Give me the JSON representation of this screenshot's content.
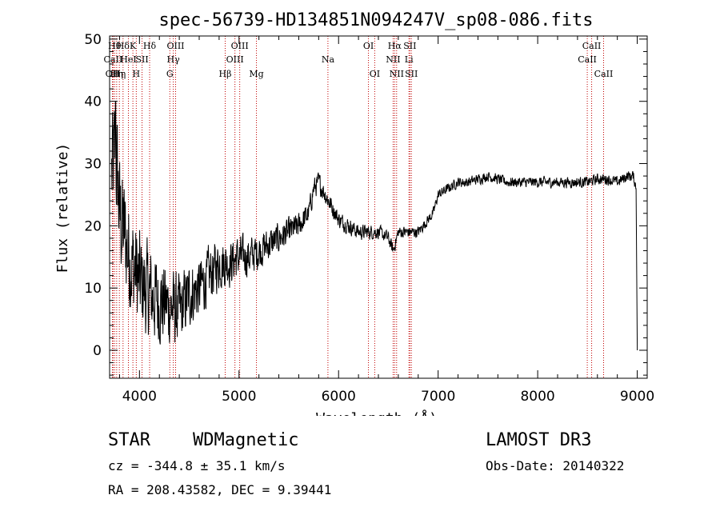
{
  "chart_data": {
    "type": "line",
    "title": "spec-56739-HD134851N094247V_sp08-086.fits",
    "xlabel": "Wavelength (Å)",
    "ylabel": "Flux (relative)",
    "xlim": [
      3700,
      9100
    ],
    "ylim": [
      -4.5,
      50.5
    ],
    "xticks": [
      4000,
      5000,
      6000,
      7000,
      8000,
      9000
    ],
    "xtick_labels": [
      "4000",
      "5000",
      "6000",
      "7000",
      "8000",
      "9000"
    ],
    "yticks": [
      0,
      10,
      20,
      30,
      40,
      50
    ],
    "ytick_labels": [
      "0",
      "10",
      "20",
      "30",
      "40",
      "50"
    ],
    "spectrum_anchors": {
      "x": [
        3720,
        3760,
        3800,
        3900,
        4000,
        4100,
        4200,
        4300,
        4400,
        4500,
        4600,
        4700,
        4800,
        4900,
        5000,
        5100,
        5200,
        5300,
        5400,
        5500,
        5600,
        5700,
        5750,
        5800,
        5900,
        6000,
        6100,
        6200,
        6300,
        6400,
        6500,
        6550,
        6600,
        6700,
        6800,
        6900,
        6950,
        7000,
        7100,
        7200,
        7300,
        7400,
        7500,
        7600,
        7700,
        7800,
        7900,
        8000,
        8100,
        8200,
        8300,
        8400,
        8500,
        8600,
        8700,
        8800,
        8900,
        8960,
        8990,
        9000
      ],
      "y": [
        28,
        32,
        22,
        15,
        11,
        9,
        8,
        7,
        6,
        9,
        10,
        12,
        14,
        14,
        15,
        15,
        16,
        17,
        18,
        19,
        20,
        22,
        26,
        27,
        24,
        21,
        20,
        19,
        19,
        19,
        18,
        16,
        19,
        19,
        19,
        21,
        22,
        25,
        26,
        27,
        27,
        27.5,
        28,
        27.5,
        27,
        27,
        27,
        27,
        27,
        27,
        27,
        27,
        27,
        27.5,
        27.5,
        27,
        28,
        28,
        26,
        0
      ]
    },
    "noise_amplitude": {
      "x": [
        3700,
        4000,
        4500,
        5000,
        5500,
        6000,
        6800,
        7000,
        9000
      ],
      "amp": [
        14,
        11,
        7,
        4.5,
        3,
        1.8,
        1.2,
        1.1,
        1.2
      ]
    },
    "spike": {
      "x": 3760,
      "y": 40
    },
    "line_markers": [
      {
        "x": 3728,
        "label": "OII",
        "row": 3
      },
      {
        "x": 3735,
        "label": "CaII",
        "row": 2
      },
      {
        "x": 3750,
        "label": "Hθ",
        "row": 1
      },
      {
        "x": 3771,
        "label": "Hη",
        "row": 3
      },
      {
        "x": 3798,
        "label": "Hη",
        "row": 3
      },
      {
        "x": 3835,
        "label": "Hδ",
        "row": 1
      },
      {
        "x": 3889,
        "label": "HeI",
        "row": 2
      },
      {
        "x": 3934,
        "label": "K",
        "row": 1
      },
      {
        "x": 3968,
        "label": "H",
        "row": 3
      },
      {
        "x": 4026,
        "label": "SII",
        "row": 2
      },
      {
        "x": 4102,
        "label": "Hδ",
        "row": 1
      },
      {
        "x": 4305,
        "label": "G",
        "row": 3
      },
      {
        "x": 4340,
        "label": "Hγ",
        "row": 2
      },
      {
        "x": 4363,
        "label": "OIII",
        "row": 1
      },
      {
        "x": 4861,
        "label": "Hβ",
        "row": 3
      },
      {
        "x": 4959,
        "label": "OIII",
        "row": 2
      },
      {
        "x": 5007,
        "label": "OIII",
        "row": 1
      },
      {
        "x": 5175,
        "label": "Mg",
        "row": 3
      },
      {
        "x": 5893,
        "label": "Na",
        "row": 2
      },
      {
        "x": 6300,
        "label": "OI",
        "row": 1
      },
      {
        "x": 6363,
        "label": "OI",
        "row": 3
      },
      {
        "x": 6548,
        "label": "NII",
        "row": 2
      },
      {
        "x": 6563,
        "label": "Hα",
        "row": 1
      },
      {
        "x": 6583,
        "label": "NII",
        "row": 3
      },
      {
        "x": 6707,
        "label": "Li",
        "row": 2
      },
      {
        "x": 6716,
        "label": "SII",
        "row": 1
      },
      {
        "x": 6731,
        "label": "SII",
        "row": 3
      },
      {
        "x": 8498,
        "label": "CaII",
        "row": 2
      },
      {
        "x": 8542,
        "label": "CaII",
        "row": 1
      },
      {
        "x": 8662,
        "label": "CaII",
        "row": 3
      }
    ]
  },
  "info": {
    "class_label": "STAR",
    "subclass": "WDMagnetic",
    "survey": "LAMOST DR3",
    "redshift": "cz = -344.8 ± 35.1 km/s",
    "obs_date": "Obs-Date: 20140322",
    "coords": "RA = 208.43582, DEC =   9.39441"
  }
}
